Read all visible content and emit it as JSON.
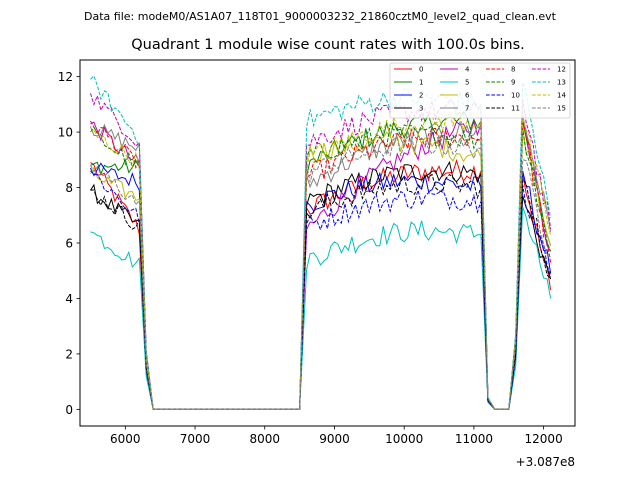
{
  "figure": {
    "suptitle": "Data file: modeM0/AS1A07_118T01_9000003232_21860cztM0_level2_quad_clean.evt"
  },
  "chart_data": {
    "type": "line",
    "title": "Quadrant 1 module wise count rates with 100.0s bins.",
    "xlabel": "",
    "ylabel": "",
    "x_offset_label": "+3.087e8",
    "xlim": [
      5350,
      12450
    ],
    "ylim": [
      -0.6,
      12.6
    ],
    "xticks": [
      6000,
      7000,
      8000,
      9000,
      10000,
      11000,
      12000
    ],
    "yticks": [
      0,
      2,
      4,
      6,
      8,
      10,
      12
    ],
    "legend": {
      "position": "top-right",
      "columns": 4
    },
    "series": [
      {
        "name": "0",
        "color": "#ff0000",
        "dash": false
      },
      {
        "name": "1",
        "color": "#008000",
        "dash": false
      },
      {
        "name": "2",
        "color": "#0000ff",
        "dash": false
      },
      {
        "name": "3",
        "color": "#000000",
        "dash": false
      },
      {
        "name": "4",
        "color": "#bf00bf",
        "dash": false
      },
      {
        "name": "5",
        "color": "#00bfbf",
        "dash": false
      },
      {
        "name": "6",
        "color": "#bfbf00",
        "dash": false
      },
      {
        "name": "7",
        "color": "#808080",
        "dash": false
      },
      {
        "name": "8",
        "color": "#ff0000",
        "dash": true
      },
      {
        "name": "9",
        "color": "#008000",
        "dash": true
      },
      {
        "name": "10",
        "color": "#0000ff",
        "dash": true
      },
      {
        "name": "11",
        "color": "#000000",
        "dash": true
      },
      {
        "name": "12",
        "color": "#bf00bf",
        "dash": true
      },
      {
        "name": "13",
        "color": "#00bfbf",
        "dash": true
      },
      {
        "name": "14",
        "color": "#bfbf00",
        "dash": true
      },
      {
        "name": "15",
        "color": "#808080",
        "dash": true
      }
    ],
    "segments": [
      {
        "x_start": 5500,
        "x_end": 6200
      },
      {
        "x_start": 8600,
        "x_end": 11100
      },
      {
        "x_start": 11700,
        "x_end": 12100
      }
    ],
    "segment1_start": [
      8.9,
      8.8,
      8.7,
      7.9,
      10.3,
      6.4,
      8.5,
      10.2,
      10.4,
      10.0,
      8.6,
      7.9,
      11.4,
      11.9,
      10.0,
      8.8
    ],
    "segment1_end": [
      6.5,
      8.7,
      8.2,
      6.6,
      8.8,
      5.2,
      7.6,
      9.4,
      8.8,
      8.7,
      6.9,
      6.6,
      9.6,
      9.8,
      8.9,
      7.4
    ],
    "segment2_start": [
      7.2,
      8.8,
      7.4,
      7.5,
      6.5,
      5.4,
      9.2,
      8.1,
      8.4,
      9.1,
      6.6,
      7.1,
      9.6,
      10.4,
      9.0,
      8.5
    ],
    "segment2_end": [
      8.6,
      10.4,
      8.0,
      8.5,
      10.3,
      6.3,
      9.1,
      10.1,
      9.8,
      9.7,
      7.5,
      8.0,
      10.7,
      11.0,
      10.4,
      9.4
    ],
    "segment3_start": [
      8.5,
      10.4,
      8.6,
      7.7,
      10.3,
      7.3,
      10.2,
      10.6,
      10.4,
      10.1,
      8.1,
      8.3,
      11.2,
      11.8,
      10.5,
      9.0
    ],
    "segment3_end": [
      4.3,
      5.9,
      4.9,
      4.7,
      5.7,
      4.0,
      5.9,
      6.4,
      5.3,
      5.7,
      4.8,
      4.7,
      6.5,
      6.9,
      6.3,
      5.5
    ],
    "descent": {
      "ramp_x": [
        6200,
        6300,
        6400
      ],
      "ramp_frac": [
        1.0,
        0.22,
        0.0
      ]
    },
    "gap1": {
      "x_start": 6400,
      "x_end": 8500,
      "value": 0
    },
    "gap2": {
      "x_start": 11200,
      "x_end": 11600,
      "values_x": [
        11200,
        11300,
        11400,
        11500,
        11600
      ],
      "fracs": [
        0.04,
        0.0,
        0.0,
        0.0,
        0.25
      ]
    }
  }
}
